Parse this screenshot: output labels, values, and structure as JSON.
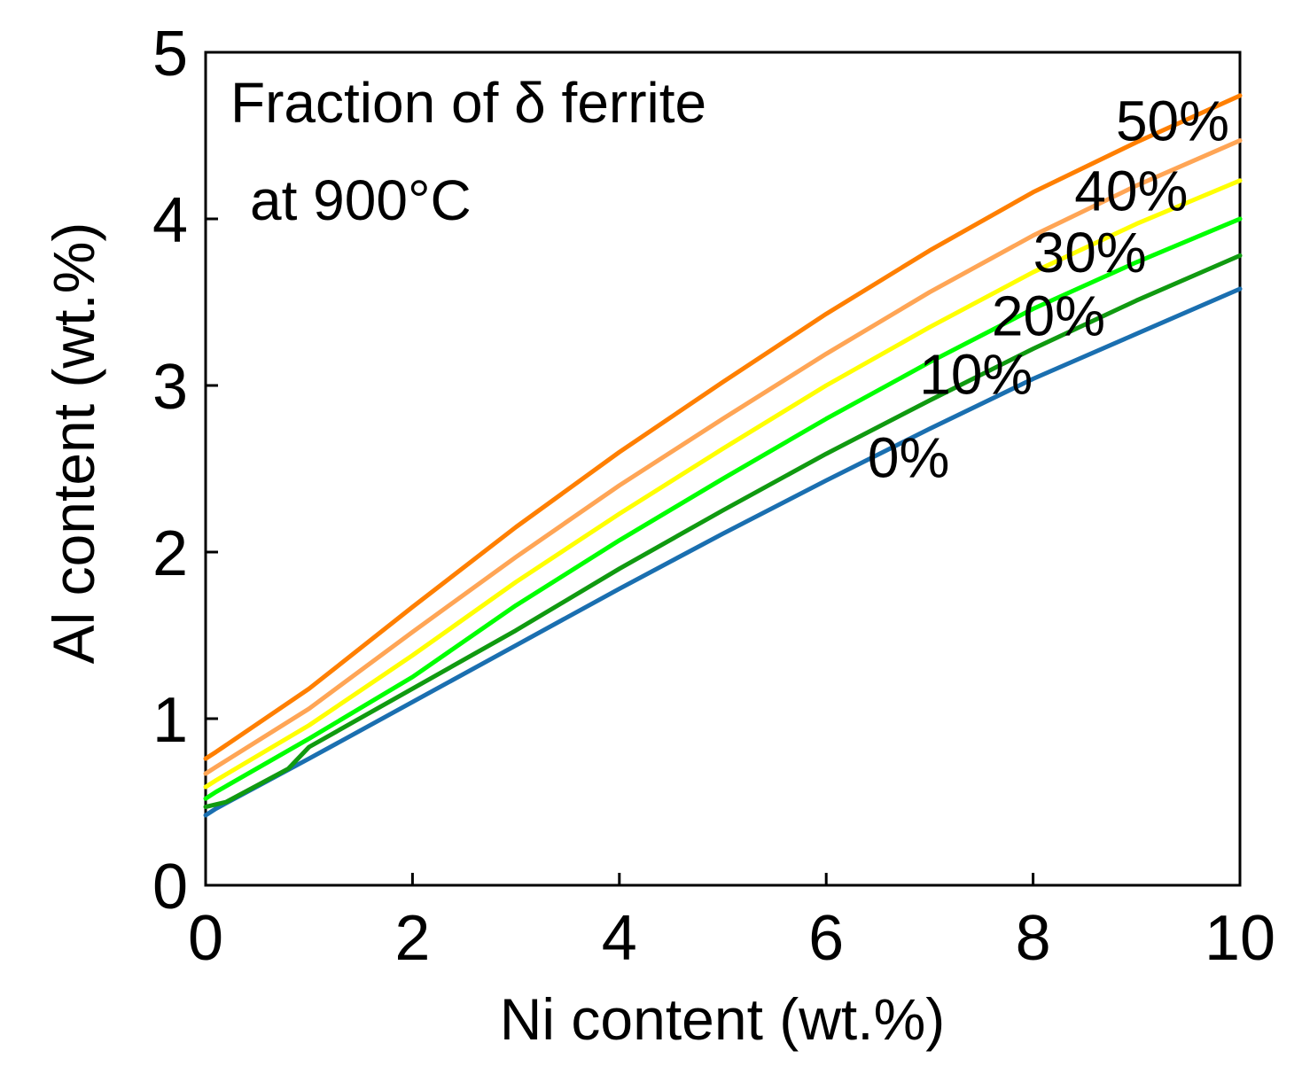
{
  "chart_data": {
    "type": "line",
    "title": "",
    "annotation_lines": [
      "Fraction of δ ferrite",
      "at 900°C"
    ],
    "xlabel": "Ni content (wt.%)",
    "ylabel": "Al content (wt.%)",
    "xlim": [
      0,
      10
    ],
    "ylim": [
      0,
      5
    ],
    "xticks": [
      "0",
      "2",
      "4",
      "6",
      "8",
      "10"
    ],
    "yticks": [
      "0",
      "1",
      "2",
      "3",
      "4",
      "5"
    ],
    "grid": false,
    "legend": "none (series labelled inline at right end of curves)",
    "series": [
      {
        "name": "0%",
        "color": "#1a6fb0",
        "x": [
          0,
          0.1,
          1,
          2,
          3,
          4,
          5,
          6,
          7,
          8,
          9,
          10
        ],
        "y": [
          0.42,
          0.46,
          0.76,
          1.1,
          1.44,
          1.78,
          2.11,
          2.43,
          2.74,
          3.04,
          3.31,
          3.58
        ]
      },
      {
        "name": "10%",
        "color": "#109a10",
        "x": [
          0,
          0.2,
          0.8,
          1,
          2,
          3,
          4,
          5,
          6,
          7,
          8,
          9,
          10
        ],
        "y": [
          0.47,
          0.5,
          0.7,
          0.83,
          1.18,
          1.53,
          1.9,
          2.25,
          2.59,
          2.91,
          3.22,
          3.51,
          3.78
        ]
      },
      {
        "name": "20%",
        "color": "#00ff00",
        "x": [
          0,
          0.1,
          1,
          2,
          3,
          4,
          5,
          6,
          7,
          8,
          9,
          10
        ],
        "y": [
          0.52,
          0.56,
          0.88,
          1.25,
          1.68,
          2.07,
          2.44,
          2.8,
          3.14,
          3.46,
          3.74,
          4.0
        ]
      },
      {
        "name": "30%",
        "color": "#ffff00",
        "x": [
          0,
          0.1,
          1,
          2,
          3,
          4,
          5,
          6,
          7,
          8,
          9,
          10
        ],
        "y": [
          0.59,
          0.63,
          0.96,
          1.38,
          1.82,
          2.23,
          2.62,
          3.0,
          3.35,
          3.68,
          3.97,
          4.23
        ]
      },
      {
        "name": "40%",
        "color": "#ffa555",
        "x": [
          0,
          0.1,
          1,
          2,
          3,
          4,
          5,
          6,
          7,
          8,
          9,
          10
        ],
        "y": [
          0.67,
          0.71,
          1.06,
          1.52,
          1.97,
          2.4,
          2.8,
          3.19,
          3.56,
          3.9,
          4.2,
          4.47
        ]
      },
      {
        "name": "50%",
        "color": "#ff7f00",
        "x": [
          0,
          0.1,
          1,
          2,
          3,
          4,
          5,
          6,
          7,
          8,
          9,
          10
        ],
        "y": [
          0.76,
          0.8,
          1.18,
          1.67,
          2.15,
          2.6,
          3.02,
          3.43,
          3.81,
          4.16,
          4.46,
          4.74
        ]
      }
    ],
    "series_labels": [
      {
        "text": "0%",
        "x": 6.4,
        "y": 2.45
      },
      {
        "text": "10%",
        "x": 6.9,
        "y": 2.95
      },
      {
        "text": "20%",
        "x": 7.6,
        "y": 3.3
      },
      {
        "text": "30%",
        "x": 8.0,
        "y": 3.68
      },
      {
        "text": "40%",
        "x": 8.4,
        "y": 4.05
      },
      {
        "text": "50%",
        "x": 8.8,
        "y": 4.47
      }
    ]
  }
}
